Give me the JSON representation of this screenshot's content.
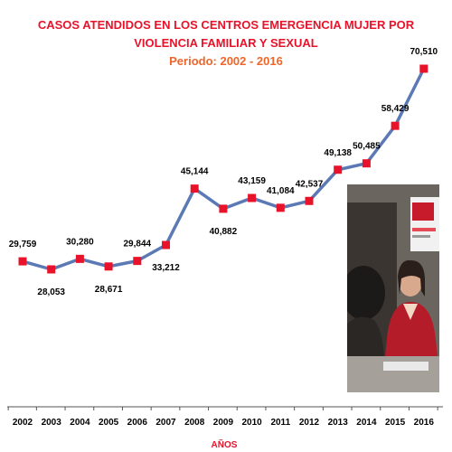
{
  "title_lines": [
    "CASOS ATENDIDOS EN LOS CENTROS EMERGENCIA MUJER POR",
    "VIOLENCIA FAMILIAR Y SEXUAL"
  ],
  "period": "Periodo: 2002 - 2016",
  "colors": {
    "title": "#e8132a",
    "period": "#f0652a",
    "line": "#5b79b4",
    "marker": "#e8132a",
    "axis": "#555555"
  },
  "chart_data": {
    "type": "line",
    "title": "CASOS ATENDIDOS EN LOS CENTROS EMERGENCIA MUJER POR VIOLENCIA FAMILIAR Y SEXUAL",
    "subtitle": "Periodo: 2002 - 2016",
    "xlabel": "AÑOS",
    "ylabel": "",
    "categories": [
      "2002",
      "2003",
      "2004",
      "2005",
      "2006",
      "2007",
      "2008",
      "2009",
      "2010",
      "2011",
      "2012",
      "2013",
      "2014",
      "2015",
      "2016"
    ],
    "values": [
      29759,
      28053,
      30280,
      28671,
      29844,
      33212,
      45144,
      40882,
      43159,
      41084,
      42537,
      49138,
      50485,
      58429,
      70510
    ],
    "labels": [
      "29,759",
      "28,053",
      "30,280",
      "28,671",
      "29,844",
      "33,212",
      "45,144",
      "40,882",
      "43,159",
      "41,084",
      "42,537",
      "49,138",
      "50,485",
      "58,429",
      "70,510"
    ],
    "label_positions": [
      "above",
      "below",
      "above",
      "below",
      "above",
      "below",
      "above",
      "below",
      "above",
      "above",
      "above",
      "above",
      "above",
      "above",
      "above"
    ],
    "ylim": [
      0,
      73000
    ],
    "grid": false,
    "legend": "none"
  }
}
